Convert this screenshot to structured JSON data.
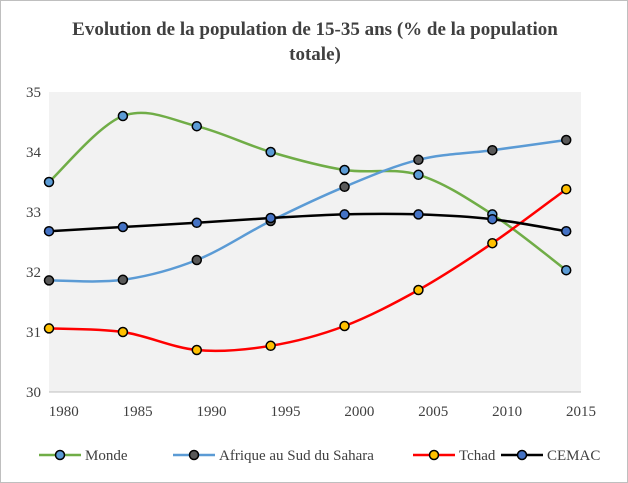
{
  "chart_data": {
    "type": "line",
    "title": "Evolution de la population  de 15-35 ans (% de la population totale)",
    "xlabel": "",
    "ylabel": "",
    "xlim": [
      1979,
      2015
    ],
    "ylim": [
      30,
      35
    ],
    "x_ticks": [
      1980,
      1985,
      1990,
      1995,
      2000,
      2005,
      2010,
      2015
    ],
    "y_ticks": [
      30,
      31,
      32,
      33,
      34,
      35
    ],
    "grid": false,
    "plot_background": "#f2f2f2",
    "legend_position": "bottom",
    "x": [
      1979,
      1984,
      1989,
      1994,
      1999,
      2004,
      2009,
      2014
    ],
    "series": [
      {
        "name": "Monde",
        "color": "#70ad47",
        "marker_fill": "#5b9bd5",
        "values": [
          33.5,
          34.6,
          34.43,
          34.0,
          33.7,
          33.62,
          32.96,
          32.03
        ]
      },
      {
        "name": "Afrique au Sud du Sahara",
        "color": "#5b9bd5",
        "marker_fill": "#595959",
        "values": [
          31.86,
          31.87,
          32.2,
          32.85,
          33.42,
          33.87,
          34.03,
          34.2
        ]
      },
      {
        "name": "Tchad",
        "color": "#ff0000",
        "marker_fill": "#ffc000",
        "values": [
          31.06,
          31.0,
          30.7,
          30.77,
          31.1,
          31.7,
          32.48,
          33.38
        ]
      },
      {
        "name": "CEMAC",
        "color": "#000000",
        "marker_fill": "#4472c4",
        "values": [
          32.68,
          32.75,
          32.82,
          32.9,
          32.96,
          32.96,
          32.88,
          32.68
        ]
      }
    ]
  }
}
